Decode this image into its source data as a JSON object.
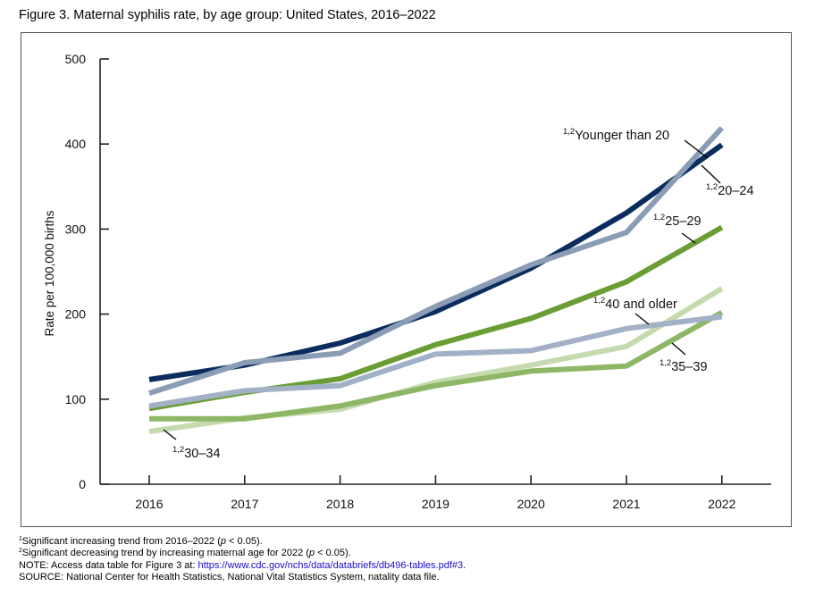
{
  "title": "Figure 3. Maternal syphilis rate, by age group: United States, 2016–2022",
  "chart_data": {
    "type": "line",
    "title": "Figure 3. Maternal syphilis rate, by age group: United States, 2016–2022",
    "xlabel": "",
    "ylabel": "Rate per 100,000 births",
    "x": [
      "2016",
      "2017",
      "2018",
      "2019",
      "2020",
      "2021",
      "2022"
    ],
    "ylim": [
      0,
      500
    ],
    "yticks": [
      0,
      100,
      200,
      300,
      400,
      500
    ],
    "grid": false,
    "legend": "direct-labels",
    "series": [
      {
        "name": "Younger than 20",
        "superscript": "1,2",
        "color": "#8b9db5",
        "values": [
          107,
          143,
          154,
          209,
          258,
          296,
          419
        ]
      },
      {
        "name": "20–24",
        "superscript": "1,2",
        "color": "#0b2d5e",
        "values": [
          123,
          140,
          166,
          203,
          254,
          319,
          399
        ]
      },
      {
        "name": "25–29",
        "superscript": "1,2",
        "color": "#6a9e35",
        "values": [
          89,
          108,
          124,
          164,
          195,
          238,
          302
        ]
      },
      {
        "name": "30–34",
        "superscript": "1,2",
        "color": "#c5dbaf",
        "values": [
          62,
          78,
          88,
          120,
          140,
          162,
          230
        ]
      },
      {
        "name": "35–39",
        "superscript": "1,2",
        "color": "#8db665",
        "values": [
          77,
          77,
          92,
          116,
          133,
          139,
          202
        ]
      },
      {
        "name": "40 and older",
        "superscript": "1,2",
        "color": "#a2b1c7",
        "values": [
          92,
          110,
          116,
          153,
          157,
          183,
          197
        ]
      }
    ]
  },
  "footnotes": {
    "note1_sup": "1",
    "note1_text": "Significant increasing trend from 2016–2022 (",
    "note1_p": "p",
    "note1_end": " < 0.05).",
    "note2_sup": "2",
    "note2_text": "Significant decreasing trend by increasing maternal age for 2022 (",
    "note2_p": "p",
    "note2_end": " < 0.05).",
    "note_prefix": "NOTE: Access data table for Figure 3 at: ",
    "note_link": "https://www.cdc.gov/nchs/data/databriefs/db496-tables.pdf#3",
    "note_suffix": ".",
    "source": "SOURCE: National Center for Health Statistics, National Vital Statistics System, natality data file."
  }
}
